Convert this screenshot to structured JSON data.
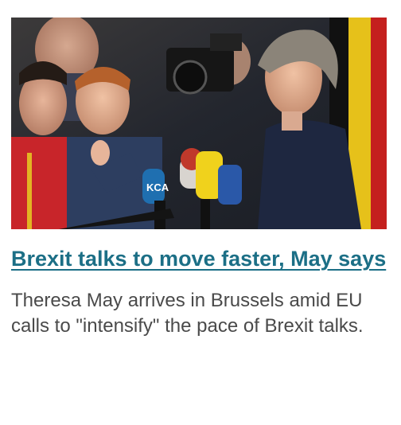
{
  "article": {
    "headline": "Brexit talks to move faster, May says",
    "summary": "Theresa May arrives in Brussels amid EU calls to \"intensify\" the pace of Brexit talks.",
    "mic_logo_text": "KCA"
  },
  "colors": {
    "headline": "#1c6f86",
    "summary": "#4a4a4a"
  }
}
